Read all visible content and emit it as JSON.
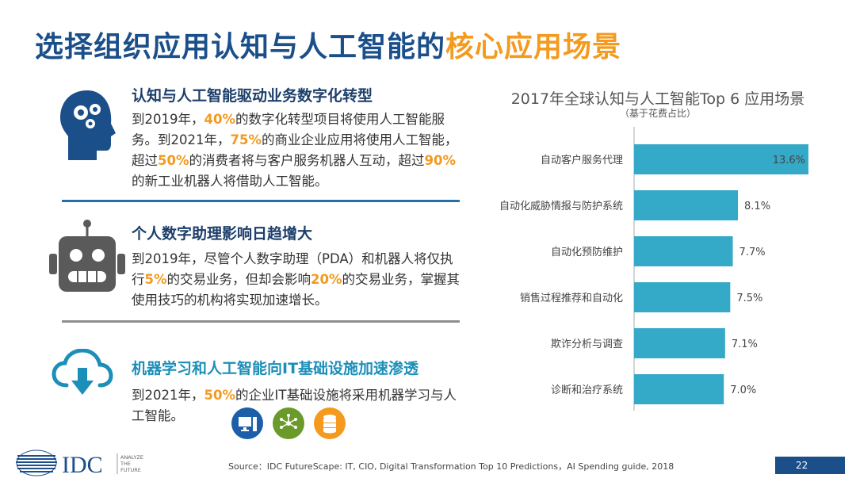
{
  "title": {
    "main": "选择组织应用认知与人工智能的",
    "highlight": "核心应用场景"
  },
  "sections": [
    {
      "heading": "认知与人工智能驱动业务数字化转型",
      "p1": "到2019年，",
      "n1": "40%",
      "p2": "的数字化转型项目将使用人工智能服务。到2021年，",
      "n2": "75%",
      "p3": "的商业企业应用将使用人工智能，超过",
      "n3": "50%",
      "p4": "的消费者将与客户服务机器人互动，超过",
      "n4": "90%",
      "p5": "的新工业机器人将借助人工智能。"
    },
    {
      "heading": "个人数字助理影响日趋增大",
      "p1": "到2019年，尽管个人数字助理（PDA）和机器人将仅执行",
      "n1": "5%",
      "p2": "的交易业务，但却会影响",
      "n2": "20%",
      "p3": "的交易业务，掌握其使用技巧的机构将实现加速增长。"
    },
    {
      "heading": "机器学习和人工智能向IT基础设施加速渗透",
      "p1": "到2021年，",
      "n1": "50%",
      "p2": "的企业IT基础设施将采用机器学习与人工智能。"
    }
  ],
  "chart_data": {
    "type": "bar",
    "orientation": "horizontal",
    "title": "2017年全球认知与人工智能Top 6 应用场景",
    "subtitle": "（基于花费占比）",
    "categories": [
      "自动客户服务代理",
      "自动化威胁情报与防护系统",
      "自动化预防维护",
      "销售过程推荐和自动化",
      "欺诈分析与调查",
      "诊断和治疗系统"
    ],
    "values": [
      13.6,
      8.1,
      7.7,
      7.5,
      7.1,
      7.0
    ],
    "labels": [
      "13.6%",
      "8.1%",
      "7.7%",
      "7.5%",
      "7.1%",
      "7.0%"
    ],
    "xlim": [
      0,
      13.6
    ],
    "bar_color": "#35a9c8",
    "grid": false
  },
  "footer": {
    "source": "Source：IDC FutureScape: IT, CIO, Digital Transformation Top 10 Predictions，AI Spending guide, 2018",
    "logo_text": "IDC",
    "tagline": [
      "ANALYZE",
      "THE",
      "FUTURE"
    ],
    "page": "22"
  },
  "colors": {
    "blue": "#1b4f8a",
    "orange": "#f39a1f",
    "teal": "#35a9c8",
    "green": "#6a9a2a"
  }
}
